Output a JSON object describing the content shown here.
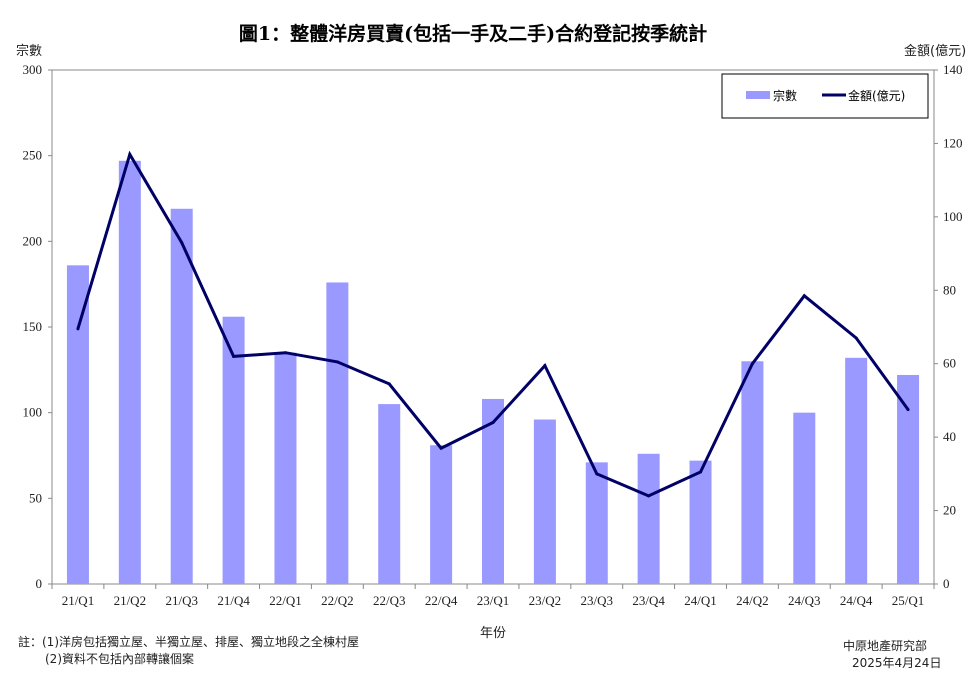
{
  "title": "圖1：整體洋房買賣(包括一手及二手)合約登記按季統計",
  "notes": {
    "line1": "註：(1)洋房包括獨立屋、半獨立屋、排屋、獨立地段之全棟村屋",
    "line2": "(2)資料不包括內部轉讓個案"
  },
  "source": {
    "org": "中原地產研究部",
    "date": "2025年4月24日"
  },
  "chart_data": {
    "type": "bar",
    "categories": [
      "21/Q1",
      "21/Q2",
      "21/Q3",
      "21/Q4",
      "22/Q1",
      "22/Q2",
      "22/Q3",
      "22/Q4",
      "23/Q1",
      "23/Q2",
      "23/Q3",
      "23/Q4",
      "24/Q1",
      "24/Q2",
      "24/Q3",
      "24/Q4",
      "25/Q1"
    ],
    "xlabel": "年份",
    "ylabel": "宗數",
    "y2label": "金額(億元)",
    "ylim": [
      0,
      300
    ],
    "yticks": [
      0,
      50,
      100,
      150,
      200,
      250,
      300
    ],
    "y2lim": [
      0,
      140
    ],
    "y2ticks": [
      0,
      20,
      40,
      60,
      80,
      100,
      120,
      140
    ],
    "legend_position": "top-right",
    "series": [
      {
        "name": "宗數",
        "kind": "bar",
        "axis": "left",
        "color": "#9999ff",
        "values": [
          186,
          247,
          219,
          156,
          135,
          176,
          105,
          81,
          108,
          96,
          71,
          76,
          72,
          130,
          100,
          132,
          122
        ]
      },
      {
        "name": "金額(億元)",
        "kind": "line",
        "axis": "right",
        "color": "#000066",
        "values": [
          69.5,
          117,
          93,
          62,
          63,
          60.5,
          54.5,
          37,
          44,
          59.5,
          30,
          24,
          30.5,
          60,
          78.5,
          67,
          47.5
        ]
      }
    ]
  }
}
